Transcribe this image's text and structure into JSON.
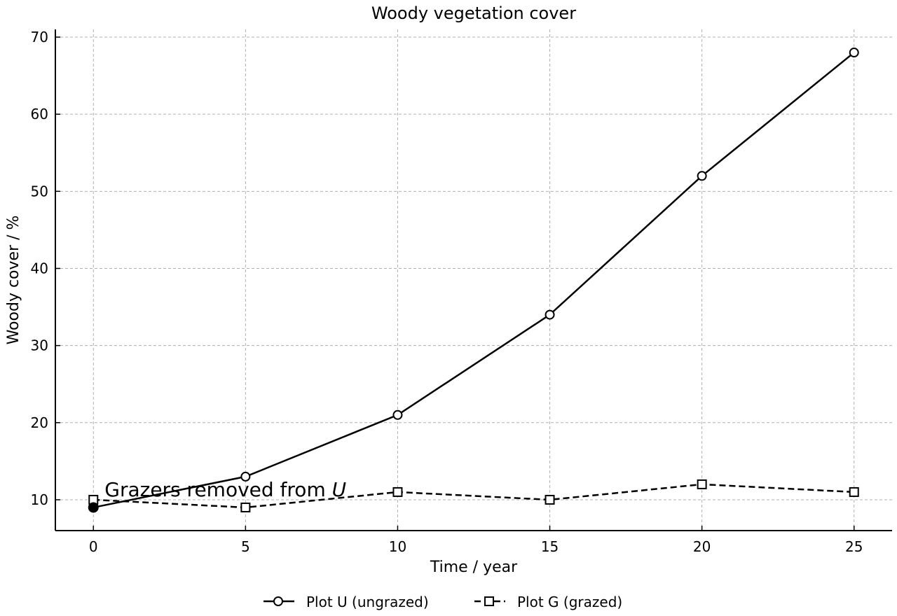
{
  "chart_data": {
    "type": "line",
    "title": "Woody vegetation cover",
    "xlabel": "Time / year",
    "ylabel": "Woody cover / %",
    "xlim": [
      -1.25,
      26.25
    ],
    "ylim": [
      6,
      71
    ],
    "xticks": [
      0,
      5,
      10,
      15,
      20,
      25
    ],
    "yticks": [
      10,
      20,
      30,
      40,
      50,
      60,
      70
    ],
    "grid": true,
    "legend_position": "bottom-center",
    "series": [
      {
        "name": "Plot U (ungrazed)",
        "x": [
          0,
          5,
          10,
          15,
          20,
          25
        ],
        "y": [
          9,
          13,
          21,
          34,
          52,
          68
        ],
        "line_style": "solid",
        "marker": "circle",
        "color": "#000000"
      },
      {
        "name": "Plot G (grazed)",
        "x": [
          0,
          5,
          10,
          15,
          20,
          25
        ],
        "y": [
          10,
          9,
          11,
          10,
          12,
          11
        ],
        "line_style": "dashed",
        "marker": "square",
        "color": "#000000"
      }
    ],
    "annotations": [
      {
        "text_prefix": "Grazers removed from ",
        "text_italic": "U",
        "x": 0,
        "y": 9
      }
    ]
  }
}
